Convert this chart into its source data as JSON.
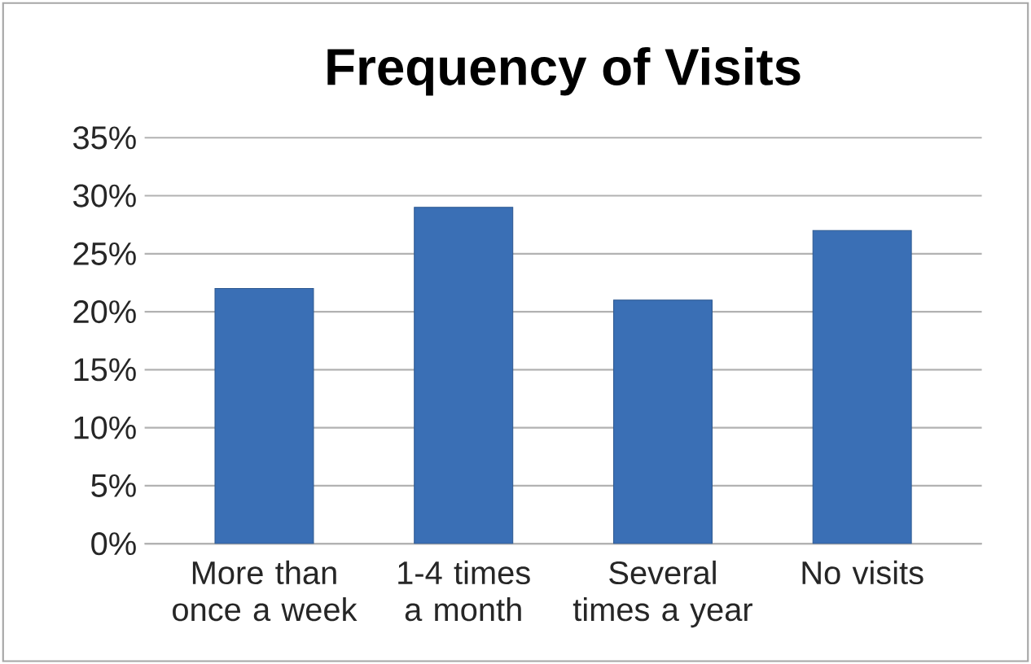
{
  "chart_data": {
    "type": "bar",
    "title": "Frequency of Visits",
    "categories": [
      "More than once a week",
      "1-4 times a month",
      "Several times a year",
      "No visits"
    ],
    "values": [
      22,
      29,
      21,
      27
    ],
    "color": "#3a6fb5",
    "ylim": [
      0,
      35
    ],
    "yticks": [
      {
        "value": 0,
        "label": "0%"
      },
      {
        "value": 5,
        "label": "5%"
      },
      {
        "value": 10,
        "label": "10%"
      },
      {
        "value": 15,
        "label": "15%"
      },
      {
        "value": 20,
        "label": "20%"
      },
      {
        "value": 25,
        "label": "25%"
      },
      {
        "value": 30,
        "label": "30%"
      },
      {
        "value": 35,
        "label": "35%"
      }
    ],
    "grid": "y"
  }
}
